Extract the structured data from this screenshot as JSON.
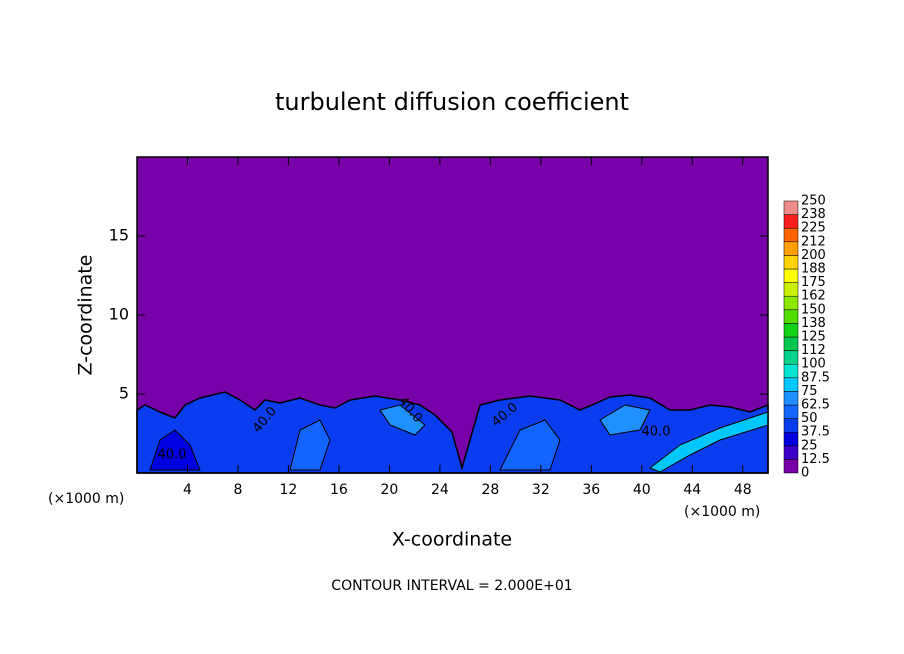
{
  "chart_data": {
    "type": "contour",
    "title": "turbulent diffusion coefficient",
    "xlabel": "X-coordinate",
    "ylabel": "Z-coordinate",
    "x_unit": "(×1000 m)",
    "footer": "CONTOUR INTERVAL = 2.000E+01",
    "xlim": [
      0,
      50
    ],
    "xticks": [
      4,
      8,
      12,
      16,
      20,
      24,
      28,
      32,
      36,
      40,
      44,
      48
    ],
    "ylim": [
      0,
      20
    ],
    "yticks": [
      5,
      10,
      15
    ],
    "contour_labels": [
      "40.0",
      "40.0",
      "40.0",
      "40.0",
      "40.0"
    ],
    "colorbar": {
      "levels": [
        0,
        12.5,
        25,
        37.5,
        50,
        62.5,
        75,
        87.5,
        100,
        {
          "value": 112.5,
          "label": "112"
        },
        125,
        {
          "value": 137.5,
          "label": "138"
        },
        150,
        {
          "value": 162.5,
          "label": "162"
        },
        175,
        {
          "value": 187.5,
          "label": "188"
        },
        200,
        {
          "value": 212.5,
          "label": "212"
        },
        225,
        {
          "value": 237.5,
          "label": "238"
        },
        250
      ],
      "colors": [
        "#7800a8",
        "#3c00c8",
        "#0000e0",
        "#0a3cf0",
        "#1464ff",
        "#1e90ff",
        "#00c8ff",
        "#00e6d2",
        "#00d28c",
        "#00c850",
        "#14d214",
        "#50dc00",
        "#8ce600",
        "#c8f000",
        "#ffff00",
        "#ffd200",
        "#ffa000",
        "#ff6400",
        "#ff1e1e",
        "#f08c8c"
      ]
    }
  }
}
